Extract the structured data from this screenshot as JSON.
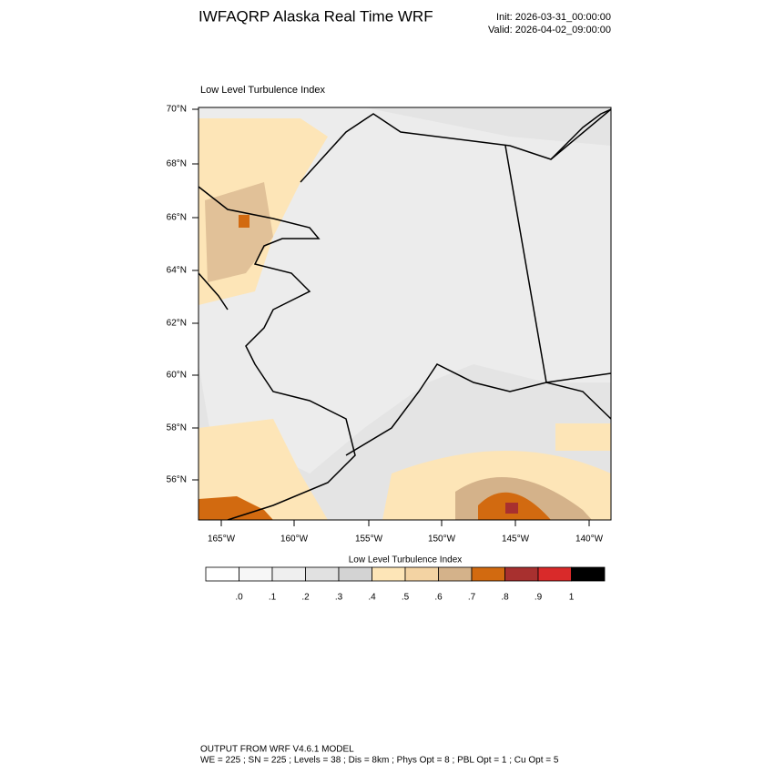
{
  "header": {
    "title": "IWFAQRP Alaska Real Time WRF",
    "init": "Init: 2026-03-31_00:00:00",
    "valid": "Valid: 2026-04-02_09:00:00"
  },
  "map": {
    "title": "Low Level Turbulence Index",
    "lat_labels": [
      "70°N",
      "68°N",
      "66°N",
      "64°N",
      "62°N",
      "60°N",
      "58°N",
      "56°N"
    ],
    "lon_labels": [
      "165°W",
      "160°W",
      "155°W",
      "150°W",
      "145°W",
      "140°W"
    ]
  },
  "colorbar": {
    "title": "Low Level Turbulence Index",
    "colors": [
      "#ffffff",
      "#f7f7f7",
      "#efefef",
      "#e1e1e1",
      "#d3d3d3",
      "#fde5b7",
      "#f3d3a3",
      "#d4b28a",
      "#d26a10",
      "#a8302f",
      "#d92a2a",
      "#000000"
    ],
    "ticks": [
      {
        "value": 0,
        "label": ".0"
      },
      {
        "value": 0.1,
        "label": ".1"
      },
      {
        "value": 0.2,
        "label": ".2"
      },
      {
        "value": 0.3,
        "label": ".3"
      },
      {
        "value": 0.4,
        "label": ".4"
      },
      {
        "value": 0.5,
        "label": ".5"
      },
      {
        "value": 0.6,
        "label": ".6"
      },
      {
        "value": 0.7,
        "label": ".7"
      },
      {
        "value": 0.8,
        "label": ".8"
      },
      {
        "value": 0.9,
        "label": ".9"
      },
      1
    ]
  },
  "footer": {
    "line1": "OUTPUT FROM WRF V4.6.1 MODEL",
    "line2": "WE = 225 ; SN = 225 ; Levels = 38 ; Dis = 8km ; Phys Opt = 8 ; PBL Opt = 1 ; Cu Opt = 5"
  }
}
